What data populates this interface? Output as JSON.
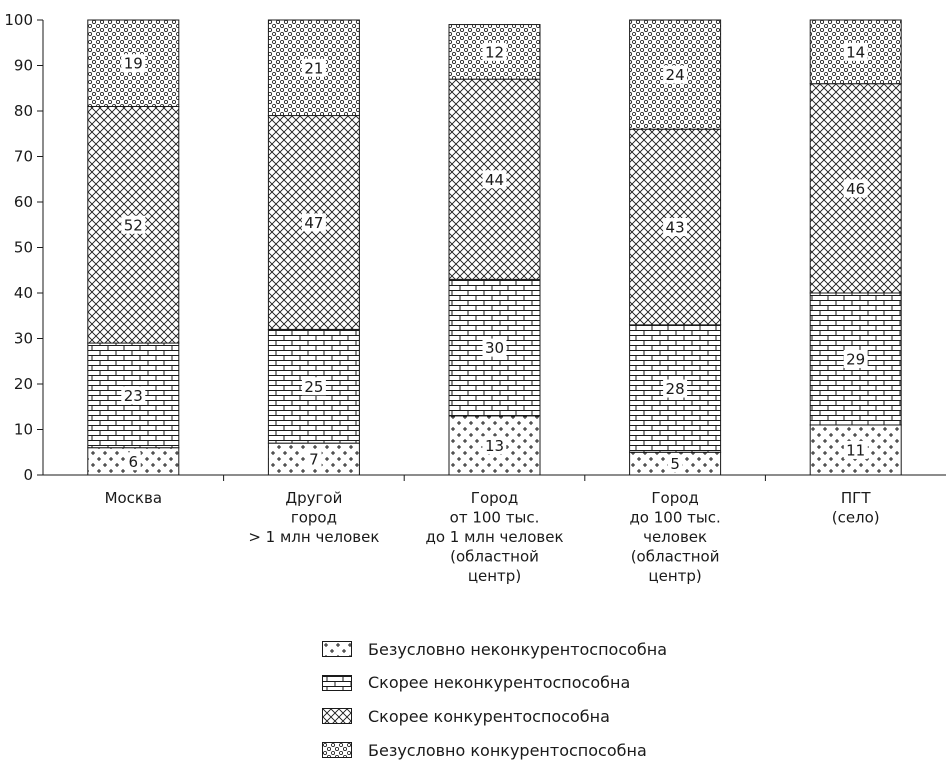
{
  "chart_data": {
    "type": "bar",
    "stacked": true,
    "categories": [
      [
        "Москва"
      ],
      [
        "Другой",
        "город",
        "> 1 млн человек"
      ],
      [
        "Город",
        "от 100 тыс.",
        "до 1 млн человек",
        "(областной",
        "центр)"
      ],
      [
        "Город",
        "до 100 тыс.",
        "человек",
        "(областной",
        "центр)"
      ],
      [
        "ПГТ",
        "(село)"
      ]
    ],
    "series": [
      {
        "name": "Безусловно неконкурентоспособна",
        "values": [
          6,
          7,
          13,
          5,
          11
        ],
        "pattern": "plus"
      },
      {
        "name": "Скорее неконкурентоспособна",
        "values": [
          23,
          25,
          30,
          28,
          29
        ],
        "pattern": "brick"
      },
      {
        "name": "Скорее конкурентоспособна",
        "values": [
          52,
          47,
          44,
          43,
          46
        ],
        "pattern": "crosshatch"
      },
      {
        "name": "Безусловно конкурентоспособна",
        "values": [
          19,
          21,
          12,
          24,
          14
        ],
        "pattern": "circles"
      }
    ],
    "ylim": [
      0,
      100
    ],
    "yticks": [
      0,
      10,
      20,
      30,
      40,
      50,
      60,
      70,
      80,
      90,
      100
    ],
    "legend_position": "bottom",
    "grid": false
  }
}
